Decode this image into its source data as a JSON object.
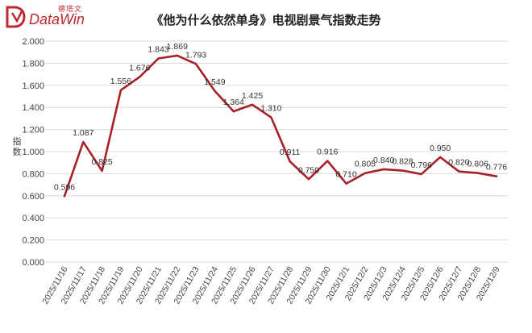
{
  "brand": {
    "cn": "德塔文",
    "en": "DataWin",
    "colors": {
      "brand": "#c0282e"
    }
  },
  "chart_data": {
    "type": "line",
    "title": "《他为什么依然单身》电视剧景气指数走势",
    "ylabel": "指数",
    "xlabel": "",
    "ylim": [
      0,
      2
    ],
    "yticks": [
      "0.000",
      "0.200",
      "0.400",
      "0.600",
      "0.800",
      "1.000",
      "1.200",
      "1.400",
      "1.600",
      "1.800",
      "2.000"
    ],
    "grid": true,
    "legend": "none",
    "line_color": "#a8202a",
    "categories": [
      "2025/11/16",
      "2025/11/17",
      "2025/11/18",
      "2025/11/19",
      "2025/11/20",
      "2025/11/21",
      "2025/11/22",
      "2025/11/23",
      "2025/11/24",
      "2025/11/25",
      "2025/11/26",
      "2025/11/27",
      "2025/11/28",
      "2025/11/29",
      "2025/11/30",
      "2025/12/1",
      "2025/12/2",
      "2025/12/3",
      "2025/12/4",
      "2025/12/5",
      "2025/12/6",
      "2025/12/7",
      "2025/12/8",
      "2025/12/9"
    ],
    "values": [
      0.596,
      1.087,
      0.825,
      1.556,
      1.676,
      1.843,
      1.869,
      1.793,
      1.549,
      1.364,
      1.425,
      1.31,
      0.911,
      0.75,
      0.916,
      0.71,
      0.805,
      0.84,
      0.828,
      0.796,
      0.95,
      0.82,
      0.806,
      0.776
    ],
    "data_labels": [
      "0.596",
      "1.087",
      "0.825",
      "1.556",
      "1.676",
      "1.843",
      "1.869",
      "1.793",
      "1.549",
      "1.364",
      "1.425",
      "1.310",
      "0.911",
      "0.750",
      "0.916",
      "0.710",
      "0.805",
      "0.840",
      "0.828",
      "0.796",
      "0.950",
      "0.820",
      "0.806",
      "0.776"
    ]
  }
}
